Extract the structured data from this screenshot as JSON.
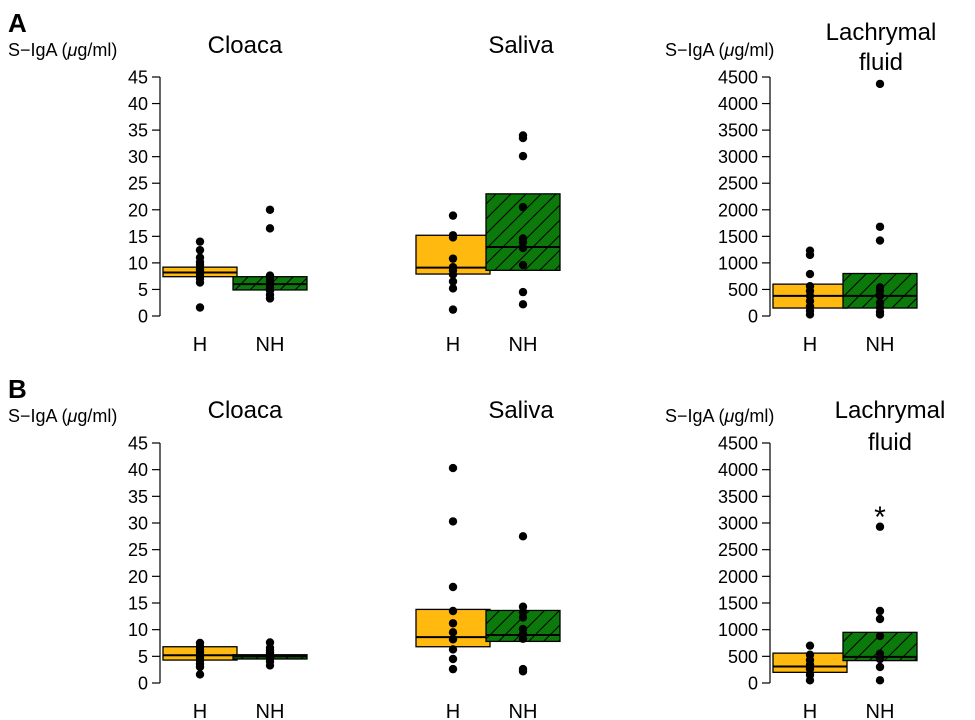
{
  "colors": {
    "H": "#FFB90F",
    "NH": "#0B7A0B",
    "point": "#000000",
    "axis": "#000000"
  },
  "chart_data": [
    {
      "type": "boxplot",
      "row_label": "A",
      "title": "Cloaca",
      "ylabel": "S−IgA (",
      "ylabel_unit": "μg/ml)",
      "ylim": [
        0,
        45
      ],
      "yticks": [
        "0",
        "5",
        "10",
        "15",
        "20",
        "25",
        "30",
        "35",
        "40",
        "45"
      ],
      "categories": [
        "H",
        "NH"
      ],
      "series": [
        {
          "category": "H",
          "box": [
            7.4,
            8.2,
            9.2
          ],
          "points": [
            1.6,
            6.3,
            7.0,
            7.5,
            8.0,
            8.4,
            8.8,
            9.6,
            10.2,
            11.0,
            12.4,
            14.0
          ]
        },
        {
          "category": "NH",
          "box": [
            4.9,
            6.0,
            7.4
          ],
          "points": [
            3.3,
            4.0,
            4.8,
            5.4,
            5.9,
            6.5,
            7.0,
            7.6,
            16.5,
            20.0
          ]
        }
      ]
    },
    {
      "type": "boxplot",
      "row_label": "",
      "title": "Saliva",
      "ylabel": "",
      "ylabel_unit": "",
      "ylim": [
        0,
        45
      ],
      "yticks": [],
      "categories": [
        "H",
        "NH"
      ],
      "series": [
        {
          "category": "H",
          "box": [
            7.9,
            9.1,
            15.2
          ],
          "points": [
            1.2,
            5.2,
            6.5,
            7.8,
            8.6,
            9.2,
            10.8,
            14.8,
            15.2,
            18.9
          ]
        },
        {
          "category": "NH",
          "box": [
            8.6,
            13.0,
            23.0
          ],
          "points": [
            2.2,
            4.5,
            9.6,
            12.8,
            13.9,
            14.6,
            20.5,
            30.1,
            33.5,
            34.0
          ]
        }
      ]
    },
    {
      "type": "boxplot",
      "row_label": "",
      "title": "Lachrymal fluid",
      "title_lines": [
        "Lachrymal",
        "fluid"
      ],
      "ylabel": "S−IgA (",
      "ylabel_unit": "μg/ml)",
      "ylim": [
        0,
        4500
      ],
      "yticks": [
        "0",
        "500",
        "1000",
        "1500",
        "2000",
        "2500",
        "3000",
        "3500",
        "4000",
        "4500"
      ],
      "categories": [
        "H",
        "NH"
      ],
      "series": [
        {
          "category": "H",
          "box": [
            150,
            380,
            600
          ],
          "points": [
            30,
            100,
            180,
            280,
            380,
            470,
            560,
            790,
            1150,
            1230
          ]
        },
        {
          "category": "NH",
          "box": [
            150,
            380,
            800
          ],
          "points": [
            30,
            80,
            160,
            250,
            380,
            470,
            540,
            1420,
            1680,
            4370
          ]
        }
      ]
    },
    {
      "type": "boxplot",
      "row_label": "B",
      "title": "Cloaca",
      "ylabel": "S−IgA (",
      "ylabel_unit": "μg/ml)",
      "ylim": [
        0,
        45
      ],
      "yticks": [
        "0",
        "5",
        "10",
        "15",
        "20",
        "25",
        "30",
        "35",
        "40",
        "45"
      ],
      "categories": [
        "H",
        "NH"
      ],
      "series": [
        {
          "category": "H",
          "box": [
            4.3,
            5.2,
            6.8
          ],
          "points": [
            1.6,
            3.0,
            3.6,
            4.2,
            4.8,
            5.3,
            5.8,
            6.3,
            6.9,
            7.5
          ]
        },
        {
          "category": "NH",
          "box": [
            4.5,
            5.0,
            5.3
          ],
          "points": [
            3.3,
            4.0,
            4.5,
            4.7,
            4.9,
            5.0,
            5.1,
            5.2,
            5.4,
            5.7,
            6.1,
            6.6,
            7.6
          ]
        }
      ]
    },
    {
      "type": "boxplot",
      "row_label": "",
      "title": "Saliva",
      "ylabel": "",
      "ylabel_unit": "",
      "ylim": [
        0,
        45
      ],
      "yticks": [],
      "categories": [
        "H",
        "NH"
      ],
      "series": [
        {
          "category": "H",
          "box": [
            6.8,
            8.6,
            13.8
          ],
          "points": [
            2.6,
            4.5,
            6.3,
            8.2,
            9.5,
            11.2,
            13.5,
            18.0,
            30.3,
            40.3
          ]
        },
        {
          "category": "NH",
          "box": [
            7.8,
            9.0,
            13.6
          ],
          "points": [
            2.2,
            2.6,
            8.3,
            9.2,
            10.1,
            12.3,
            13.3,
            14.3,
            27.5
          ]
        }
      ]
    },
    {
      "type": "boxplot",
      "row_label": "",
      "title": "Lachrymal fluid",
      "title_lines": [
        "Lachrymal",
        "fluid"
      ],
      "ylabel": "S−IgA (",
      "ylabel_unit": "μg/ml)",
      "ylim": [
        0,
        4500
      ],
      "yticks": [
        "0",
        "500",
        "1000",
        "1500",
        "2000",
        "2500",
        "3000",
        "3500",
        "4000",
        "4500"
      ],
      "categories": [
        "H",
        "NH"
      ],
      "annotation": "*",
      "series": [
        {
          "category": "H",
          "box": [
            200,
            310,
            560
          ],
          "points": [
            50,
            150,
            260,
            350,
            430,
            530,
            700
          ]
        },
        {
          "category": "NH",
          "box": [
            420,
            490,
            950
          ],
          "points": [
            50,
            300,
            450,
            550,
            880,
            1200,
            1350,
            2930
          ]
        }
      ]
    }
  ]
}
